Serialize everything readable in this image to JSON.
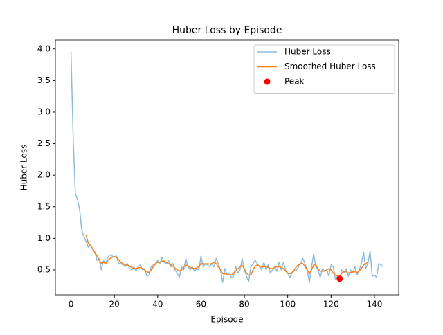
{
  "chart_data": {
    "type": "line",
    "title": "Huber Loss by Episode",
    "x_label": "Episode",
    "y_label": "Huber Loss",
    "x": [
      0,
      1,
      2,
      3,
      4,
      5,
      6,
      7,
      8,
      9,
      10,
      11,
      12,
      13,
      14,
      15,
      16,
      17,
      18,
      19,
      20,
      21,
      22,
      23,
      24,
      25,
      26,
      27,
      28,
      29,
      30,
      31,
      32,
      33,
      34,
      35,
      36,
      37,
      38,
      39,
      40,
      41,
      42,
      43,
      44,
      45,
      46,
      47,
      48,
      49,
      50,
      51,
      52,
      53,
      54,
      55,
      56,
      57,
      58,
      59,
      60,
      61,
      62,
      63,
      64,
      65,
      66,
      67,
      68,
      69,
      70,
      71,
      72,
      73,
      74,
      75,
      76,
      77,
      78,
      79,
      80,
      81,
      82,
      83,
      84,
      85,
      86,
      87,
      88,
      89,
      90,
      91,
      92,
      93,
      94,
      95,
      96,
      97,
      98,
      99,
      100,
      101,
      102,
      103,
      104,
      105,
      106,
      107,
      108,
      109,
      110,
      111,
      112,
      113,
      114,
      115,
      116,
      117,
      118,
      119,
      120,
      121,
      122,
      123,
      124,
      125,
      126,
      127,
      128,
      129,
      130,
      131,
      132,
      133,
      134,
      135,
      136,
      137,
      138,
      139,
      140,
      141,
      142,
      143,
      144
    ],
    "series": [
      {
        "name": "Huber Loss",
        "color": "#1f77b4",
        "alpha": 0.5,
        "mode": "line",
        "values": [
          3.96,
          2.6,
          1.71,
          1.62,
          1.45,
          1.12,
          1.02,
          0.95,
          0.86,
          0.9,
          0.82,
          0.78,
          0.65,
          0.68,
          0.5,
          0.65,
          0.6,
          0.7,
          0.74,
          0.72,
          0.7,
          0.72,
          0.6,
          0.6,
          0.58,
          0.55,
          0.6,
          0.52,
          0.5,
          0.55,
          0.48,
          0.55,
          0.58,
          0.5,
          0.52,
          0.4,
          0.42,
          0.55,
          0.58,
          0.6,
          0.65,
          0.6,
          0.7,
          0.62,
          0.6,
          0.65,
          0.55,
          0.6,
          0.5,
          0.45,
          0.38,
          0.55,
          0.5,
          0.68,
          0.55,
          0.5,
          0.55,
          0.48,
          0.52,
          0.5,
          0.72,
          0.55,
          0.6,
          0.58,
          0.55,
          0.6,
          0.55,
          0.68,
          0.6,
          0.5,
          0.3,
          0.52,
          0.42,
          0.45,
          0.38,
          0.4,
          0.55,
          0.45,
          0.5,
          0.68,
          0.5,
          0.4,
          0.32,
          0.55,
          0.6,
          0.65,
          0.6,
          0.55,
          0.5,
          0.62,
          0.5,
          0.58,
          0.45,
          0.5,
          0.55,
          0.48,
          0.62,
          0.5,
          0.62,
          0.5,
          0.45,
          0.38,
          0.45,
          0.48,
          0.5,
          0.55,
          0.6,
          0.68,
          0.6,
          0.48,
          0.3,
          0.55,
          0.75,
          0.55,
          0.5,
          0.38,
          0.52,
          0.48,
          0.5,
          0.4,
          0.58,
          0.55,
          0.35,
          0.4,
          0.36,
          0.5,
          0.45,
          0.52,
          0.4,
          0.5,
          0.45,
          0.55,
          0.42,
          0.5,
          0.6,
          0.78,
          0.52,
          0.6,
          0.8,
          0.4,
          0.42,
          0.38,
          0.6,
          0.58,
          0.55
        ]
      },
      {
        "name": "Smoothed Huber Loss",
        "color": "#ff7f0e",
        "alpha": 1,
        "mode": "line",
        "values": [
          null,
          null,
          null,
          null,
          null,
          null,
          null,
          1.05,
          0.92,
          0.88,
          0.84,
          0.78,
          0.72,
          0.66,
          0.6,
          0.62,
          0.6,
          0.65,
          0.68,
          0.7,
          0.71,
          0.7,
          0.66,
          0.62,
          0.6,
          0.58,
          0.58,
          0.56,
          0.54,
          0.52,
          0.52,
          0.53,
          0.54,
          0.52,
          0.5,
          0.47,
          0.46,
          0.5,
          0.55,
          0.6,
          0.62,
          0.62,
          0.64,
          0.64,
          0.62,
          0.6,
          0.58,
          0.56,
          0.53,
          0.5,
          0.48,
          0.5,
          0.54,
          0.58,
          0.56,
          0.54,
          0.53,
          0.52,
          0.53,
          0.55,
          0.6,
          0.6,
          0.59,
          0.6,
          0.59,
          0.6,
          0.62,
          0.6,
          0.55,
          0.5,
          0.44,
          0.44,
          0.43,
          0.42,
          0.42,
          0.45,
          0.48,
          0.52,
          0.55,
          0.57,
          0.52,
          0.45,
          0.42,
          0.42,
          0.5,
          0.56,
          0.58,
          0.56,
          0.54,
          0.55,
          0.56,
          0.54,
          0.52,
          0.52,
          0.54,
          0.55,
          0.55,
          0.54,
          0.52,
          0.48,
          0.45,
          0.44,
          0.46,
          0.5,
          0.55,
          0.58,
          0.6,
          0.6,
          0.55,
          0.5,
          0.44,
          0.5,
          0.58,
          0.58,
          0.52,
          0.48,
          0.48,
          0.48,
          0.5,
          0.52,
          0.5,
          0.45,
          0.42,
          0.4,
          0.4,
          0.45,
          0.48,
          0.47,
          0.45,
          0.46,
          0.47,
          0.47,
          0.46,
          0.48,
          0.52,
          0.58,
          0.6,
          0.62,
          null,
          null,
          null,
          null,
          null,
          null,
          null
        ]
      },
      {
        "name": "Peak",
        "color": "red",
        "alpha": 1,
        "mode": "markers",
        "x": [
          124
        ],
        "values": [
          0.36
        ]
      }
    ],
    "xlim": [
      -7.2,
      151.2
    ],
    "xticks": [
      0,
      20,
      40,
      60,
      80,
      100,
      120,
      140
    ],
    "ylim": [
      0.105,
      4.14
    ],
    "yticks": [
      0.5,
      {
        "value": 1,
        "label": "1.0"
      },
      1.5,
      {
        "value": 2,
        "label": "2.0"
      },
      2.5,
      {
        "value": 3,
        "label": "3.0"
      },
      3.5,
      {
        "value": 4,
        "label": "4.0"
      }
    ],
    "legend": "upper right",
    "grid": false
  }
}
